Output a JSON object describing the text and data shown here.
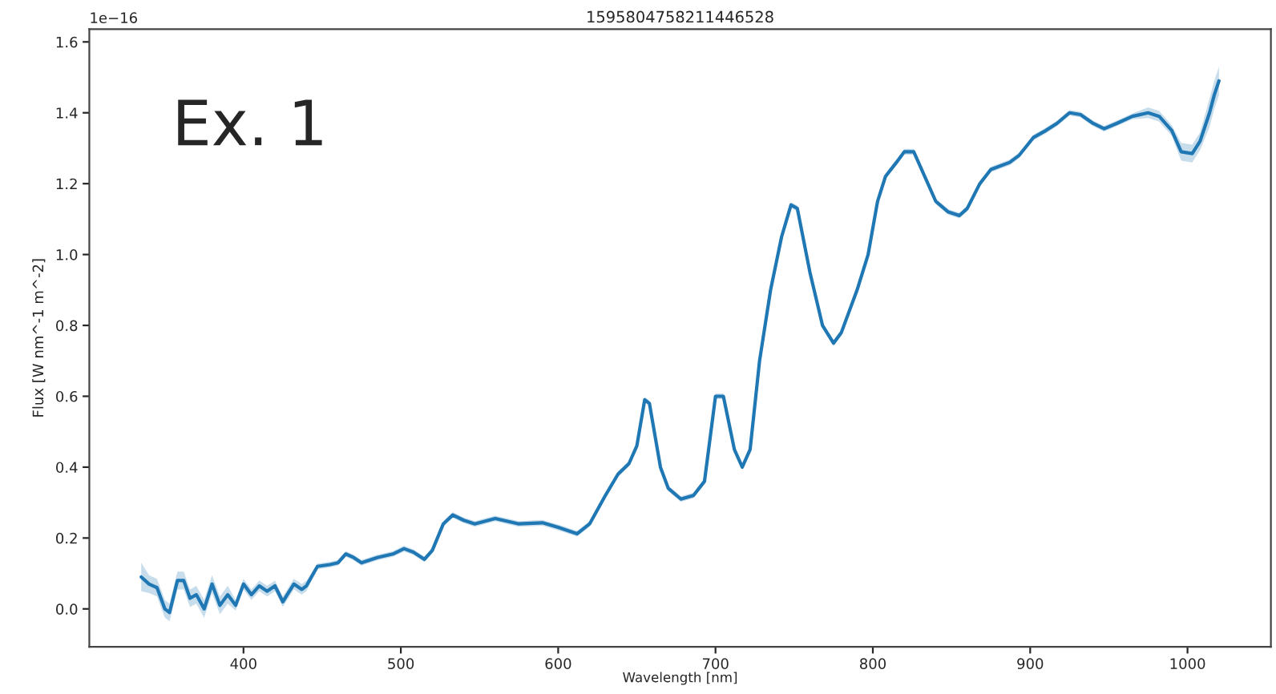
{
  "chart_data": {
    "type": "line",
    "title": "1595804758211446528",
    "xlabel": "Wavelength [nm]",
    "ylabel": "Flux [W nm^-1 m^-2]",
    "annotations": [
      "1e−16",
      "Ex. 1"
    ],
    "xlim": [
      302,
      1053
    ],
    "xticks": [
      400,
      500,
      600,
      700,
      800,
      900,
      1000
    ],
    "ylim": [
      -0.107,
      1.636
    ],
    "yticks": [
      {
        "value": 0,
        "label": "0.0"
      },
      {
        "value": 0.2,
        "label": "0.2"
      },
      {
        "value": 0.4,
        "label": "0.4"
      },
      {
        "value": 0.6,
        "label": "0.6"
      },
      {
        "value": 0.8,
        "label": "0.8"
      },
      {
        "value": 1.0,
        "label": "1.0"
      },
      {
        "value": 1.2,
        "label": "1.2"
      },
      {
        "value": 1.4,
        "label": "1.4"
      },
      {
        "value": 1.6,
        "label": "1.6"
      }
    ],
    "grid": false,
    "legend": false,
    "marker": "none",
    "line_style": "solid",
    "series": [
      {
        "color": "#1f77b4",
        "x": [
          335,
          340,
          345,
          350,
          353,
          358,
          362,
          366,
          370,
          375,
          380,
          385,
          390,
          395,
          400,
          405,
          410,
          415,
          420,
          425,
          432,
          437,
          440,
          447,
          455,
          460,
          465,
          470,
          475,
          485,
          495,
          502,
          508,
          515,
          520,
          527,
          533,
          540,
          547,
          560,
          575,
          590,
          600,
          612,
          620,
          630,
          638,
          645,
          650,
          655,
          658,
          665,
          670,
          678,
          686,
          693,
          700,
          705,
          712,
          717,
          722,
          728,
          735,
          742,
          748,
          752,
          760,
          768,
          775,
          780,
          790,
          797,
          803,
          808,
          815,
          820,
          826,
          832,
          840,
          848,
          855,
          860,
          868,
          875,
          887,
          893,
          902,
          910,
          917,
          925,
          932,
          940,
          947,
          955,
          965,
          975,
          982,
          990,
          996,
          1003,
          1008,
          1014,
          1017,
          1020
        ],
        "values": [
          0.09,
          0.07,
          0.06,
          0.0,
          -0.01,
          0.08,
          0.08,
          0.03,
          0.04,
          0.0,
          0.07,
          0.01,
          0.04,
          0.01,
          0.07,
          0.04,
          0.065,
          0.05,
          0.065,
          0.02,
          0.07,
          0.055,
          0.065,
          0.12,
          0.125,
          0.13,
          0.155,
          0.145,
          0.13,
          0.145,
          0.155,
          0.17,
          0.16,
          0.14,
          0.165,
          0.24,
          0.265,
          0.25,
          0.24,
          0.255,
          0.24,
          0.243,
          0.23,
          0.212,
          0.24,
          0.32,
          0.38,
          0.41,
          0.46,
          0.59,
          0.58,
          0.4,
          0.34,
          0.31,
          0.32,
          0.36,
          0.6,
          0.6,
          0.45,
          0.4,
          0.45,
          0.7,
          0.9,
          1.05,
          1.14,
          1.13,
          0.95,
          0.8,
          0.75,
          0.78,
          0.9,
          1.0,
          1.15,
          1.22,
          1.26,
          1.29,
          1.29,
          1.23,
          1.15,
          1.12,
          1.11,
          1.13,
          1.2,
          1.24,
          1.26,
          1.28,
          1.33,
          1.35,
          1.37,
          1.4,
          1.395,
          1.37,
          1.355,
          1.37,
          1.39,
          1.4,
          1.39,
          1.35,
          1.29,
          1.285,
          1.32,
          1.4,
          1.45,
          1.49
        ],
        "lower": [
          0.05,
          0.045,
          0.035,
          -0.025,
          -0.035,
          0.055,
          0.055,
          0.005,
          0.015,
          -0.025,
          0.045,
          -0.015,
          0.015,
          -0.005,
          0.055,
          0.025,
          0.05,
          0.035,
          0.05,
          0.005,
          0.055,
          0.04,
          0.05,
          0.112,
          0.117,
          0.122,
          0.147,
          0.137,
          0.122,
          0.137,
          0.147,
          0.162,
          0.152,
          0.132,
          0.157,
          0.232,
          0.257,
          0.242,
          0.232,
          0.247,
          0.232,
          0.235,
          0.222,
          0.204,
          0.232,
          0.312,
          0.372,
          0.402,
          0.452,
          0.582,
          0.572,
          0.392,
          0.332,
          0.302,
          0.312,
          0.352,
          0.592,
          0.592,
          0.442,
          0.392,
          0.442,
          0.692,
          0.892,
          1.042,
          1.132,
          1.122,
          0.942,
          0.792,
          0.742,
          0.772,
          0.892,
          0.992,
          1.142,
          1.212,
          1.252,
          1.282,
          1.282,
          1.222,
          1.142,
          1.112,
          1.102,
          1.122,
          1.192,
          1.232,
          1.252,
          1.272,
          1.322,
          1.342,
          1.362,
          1.392,
          1.387,
          1.362,
          1.347,
          1.362,
          1.382,
          1.385,
          1.375,
          1.335,
          1.265,
          1.26,
          1.295,
          1.36,
          1.41,
          1.45
        ],
        "upper": [
          0.13,
          0.095,
          0.085,
          0.025,
          0.015,
          0.105,
          0.105,
          0.055,
          0.065,
          0.025,
          0.095,
          0.035,
          0.065,
          0.025,
          0.085,
          0.055,
          0.08,
          0.065,
          0.08,
          0.035,
          0.085,
          0.07,
          0.08,
          0.128,
          0.133,
          0.138,
          0.163,
          0.153,
          0.138,
          0.153,
          0.163,
          0.178,
          0.168,
          0.148,
          0.173,
          0.248,
          0.273,
          0.258,
          0.248,
          0.263,
          0.248,
          0.251,
          0.238,
          0.22,
          0.248,
          0.328,
          0.388,
          0.418,
          0.468,
          0.598,
          0.588,
          0.408,
          0.348,
          0.318,
          0.328,
          0.368,
          0.608,
          0.608,
          0.458,
          0.408,
          0.458,
          0.708,
          0.908,
          1.058,
          1.148,
          1.138,
          0.958,
          0.808,
          0.758,
          0.788,
          0.908,
          1.008,
          1.158,
          1.228,
          1.268,
          1.298,
          1.298,
          1.238,
          1.158,
          1.128,
          1.118,
          1.138,
          1.208,
          1.248,
          1.268,
          1.288,
          1.338,
          1.358,
          1.378,
          1.408,
          1.403,
          1.378,
          1.363,
          1.378,
          1.398,
          1.415,
          1.405,
          1.365,
          1.315,
          1.31,
          1.345,
          1.44,
          1.49,
          1.53
        ]
      }
    ]
  }
}
